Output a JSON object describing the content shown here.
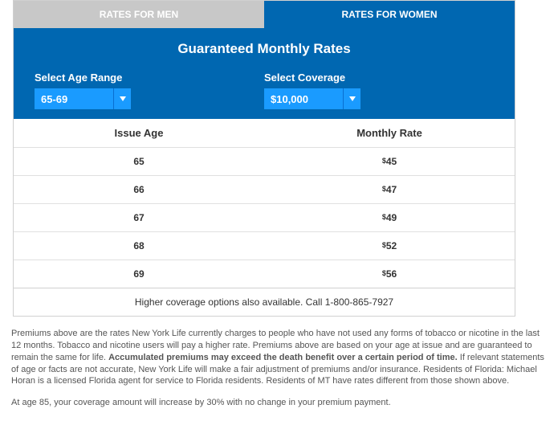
{
  "tabs": {
    "men_label": "RATES FOR MEN",
    "women_label": "RATES FOR WOMEN"
  },
  "panel": {
    "title": "Guaranteed Monthly Rates",
    "age_label": "Select Age Range",
    "coverage_label": "Select Coverage",
    "age_value": "65-69",
    "coverage_value": "$10,000"
  },
  "table": {
    "col1_header": "Issue Age",
    "col2_header": "Monthly Rate",
    "rows": [
      {
        "age": "65",
        "rate": "45"
      },
      {
        "age": "66",
        "rate": "47"
      },
      {
        "age": "67",
        "rate": "49"
      },
      {
        "age": "68",
        "rate": "52"
      },
      {
        "age": "69",
        "rate": "56"
      }
    ],
    "footer_text": "Higher coverage options also available. Call 1-800-865-7927"
  },
  "disclaimer": {
    "p1a": "Premiums above are the rates New York Life currently charges to people who have not used any forms of tobacco or nicotine in the last 12 months. Tobacco and nicotine users will pay a higher rate. Premiums above are based on your age at issue and are guaranteed to remain the same for life. ",
    "p1b": "Accumulated premiums may exceed the death benefit over a certain period of time.",
    "p1c": " If relevant statements of age or facts are not accurate, New York Life will make a fair adjustment of premiums and/or insurance. Residents of Florida: Michael Horan is a licensed Florida agent for service to Florida residents. Residents of MT have rates different from those shown above.",
    "p2": "At age 85, your coverage amount will increase by 30% with no change in your premium payment."
  },
  "colors": {
    "brand_blue": "#0067b1",
    "dropdown_blue": "#1a9bff",
    "inactive_gray": "#c8c8c8"
  }
}
